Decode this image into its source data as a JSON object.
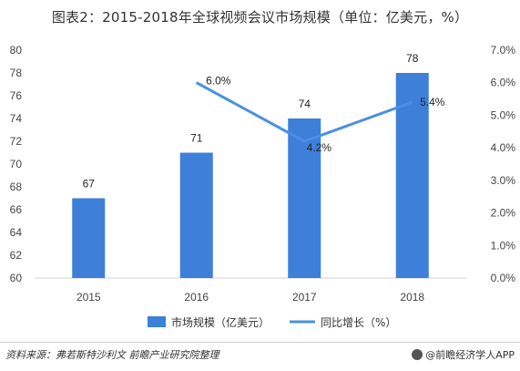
{
  "title": "图表2：2015-2018年全球视频会议市场规模（单位：亿美元，%）",
  "source": "资料来源：弗若斯特沙利文 前瞻产业研究院整理",
  "brand": "@前瞻经济学人APP",
  "colors": {
    "bar": "#3d7fd9",
    "line": "#4a90e2",
    "axis": "#d0d0d0"
  },
  "chart_data": {
    "type": "bar",
    "categories": [
      "2015",
      "2016",
      "2017",
      "2018"
    ],
    "series": [
      {
        "name": "市场规模（亿美元）",
        "type": "bar",
        "axis": "left",
        "values": [
          67,
          71,
          74,
          78
        ]
      },
      {
        "name": "同比增长（%）",
        "type": "line",
        "axis": "right",
        "values": [
          null,
          6.0,
          4.2,
          5.4
        ]
      }
    ],
    "y_left": {
      "min": 60,
      "max": 80,
      "ticks": [
        60,
        62,
        64,
        66,
        68,
        70,
        72,
        74,
        76,
        78,
        80
      ]
    },
    "y_right": {
      "min": 0,
      "max": 7,
      "ticks": [
        "0.0%",
        "1.0%",
        "2.0%",
        "3.0%",
        "4.0%",
        "5.0%",
        "6.0%",
        "7.0%"
      ]
    },
    "bar_labels": [
      "67",
      "71",
      "74",
      "78"
    ],
    "line_labels": [
      "",
      "6.0%",
      "4.2%",
      "5.4%"
    ],
    "legend_position": "bottom",
    "grid": false
  }
}
